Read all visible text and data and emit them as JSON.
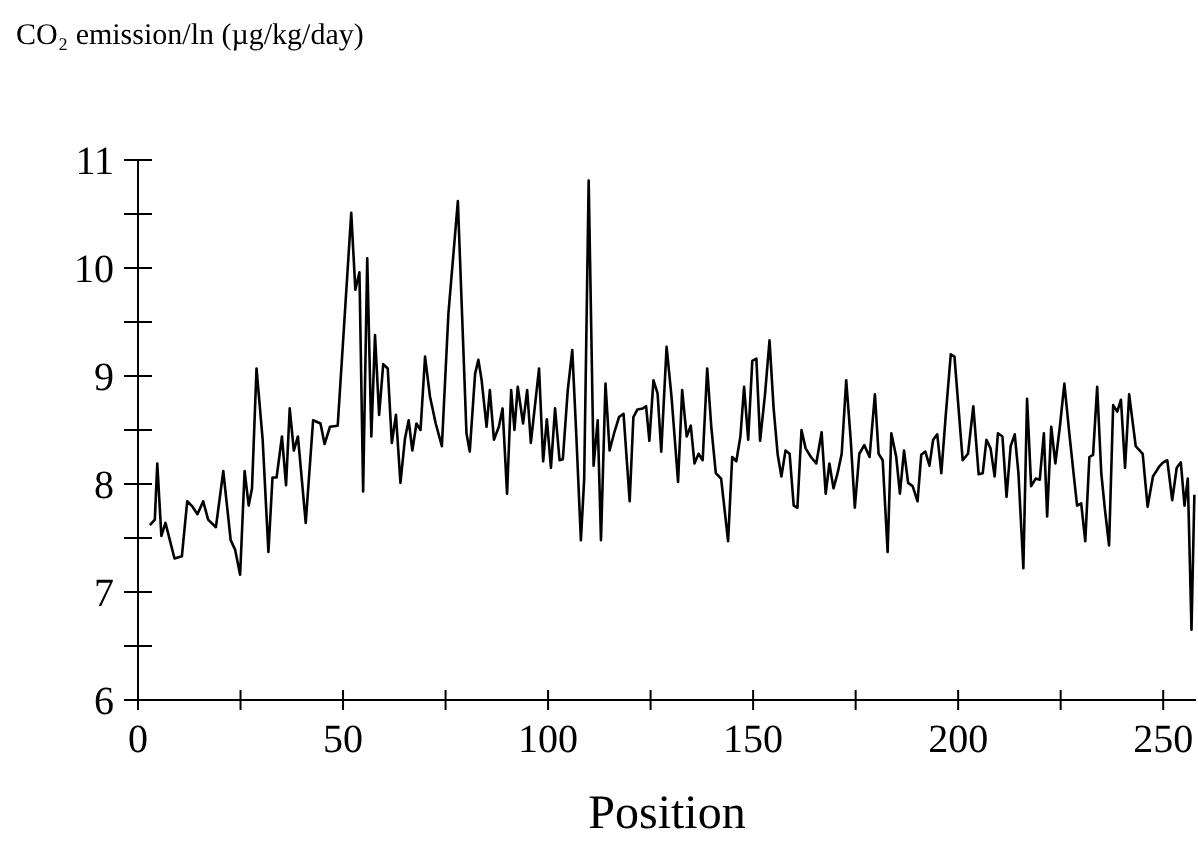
{
  "chart_data": {
    "type": "line",
    "title": "CO₂ emission/ln (µg/kg/day)",
    "xlabel": "Position",
    "xlim": [
      0,
      258
    ],
    "xticks": [
      0,
      {
        "value": 25,
        "label": null
      },
      50,
      {
        "value": 75,
        "label": null
      },
      100,
      {
        "value": 125,
        "label": null
      },
      150,
      {
        "value": 175,
        "label": null
      },
      200,
      {
        "value": 225,
        "label": null
      },
      250
    ],
    "ylim": [
      6,
      11
    ],
    "yticks": [
      6,
      {
        "value": 6.5,
        "label": null
      },
      7,
      {
        "value": 7.5,
        "label": null
      },
      8,
      {
        "value": 8.5,
        "label": null
      },
      9,
      {
        "value": 9.5,
        "label": null
      },
      10,
      {
        "value": 10.5,
        "label": null
      },
      11
    ],
    "series": [
      {
        "color": "#000000",
        "x": [
          2.9,
          4.1,
          4.7,
          5.7,
          6.7,
          8.9,
          10.7,
          12.0,
          13.3,
          14.5,
          15.9,
          17.1,
          19.0,
          20.8,
          22.6,
          23.7,
          24.9,
          26.0,
          27.0,
          27.8,
          28.9,
          30.4,
          31.8,
          32.8,
          33.8,
          35.1,
          36.1,
          37.0,
          38.0,
          39.0,
          40.9,
          42.7,
          44.5,
          45.5,
          46.8,
          48.7,
          52.0,
          53.0,
          54.0,
          54.9,
          55.9,
          56.9,
          57.8,
          58.8,
          59.8,
          60.9,
          61.9,
          62.9,
          64.0,
          65.1,
          66.0,
          66.9,
          67.9,
          68.9,
          70.0,
          71.2,
          72.6,
          74.1,
          75.7,
          78.0,
          80.1,
          80.9,
          82.2,
          83.0,
          83.8,
          85.0,
          85.8,
          86.8,
          88.0,
          88.9,
          90.0,
          91.0,
          91.8,
          92.6,
          93.9,
          94.9,
          95.8,
          96.7,
          97.8,
          98.8,
          99.7,
          100.7,
          101.7,
          102.8,
          103.6,
          104.8,
          105.9,
          106.9,
          108.0,
          108.8,
          109.9,
          111.1,
          112.1,
          112.9,
          114.0,
          115.0,
          116.1,
          117.3,
          118.4,
          119.9,
          120.8,
          121.8,
          123.1,
          123.9,
          124.7,
          125.7,
          126.7,
          127.6,
          128.9,
          130.1,
          131.7,
          132.7,
          133.8,
          134.8,
          135.7,
          136.7,
          137.7,
          138.8,
          139.8,
          140.9,
          142.2,
          143.9,
          144.9,
          145.9,
          146.9,
          147.8,
          148.8,
          149.8,
          150.8,
          151.7,
          152.9,
          154.0,
          155.0,
          156.0,
          156.9,
          157.9,
          158.9,
          159.9,
          160.8,
          161.8,
          162.8,
          164.1,
          165.4,
          166.7,
          167.7,
          168.6,
          169.6,
          170.6,
          171.6,
          172.7,
          173.8,
          174.8,
          175.9,
          177.1,
          178.4,
          179.7,
          180.6,
          181.6,
          182.8,
          183.7,
          184.9,
          185.8,
          186.8,
          187.8,
          188.9,
          190.1,
          191.0,
          192.0,
          193.0,
          193.9,
          194.9,
          195.9,
          197.0,
          198.2,
          199.1,
          201.1,
          202.4,
          203.7,
          205.0,
          206.0,
          206.9,
          207.9,
          208.9,
          209.7,
          210.8,
          211.8,
          212.8,
          213.8,
          214.7,
          215.9,
          216.8,
          217.8,
          218.9,
          219.9,
          220.9,
          221.7,
          222.7,
          223.7,
          224.8,
          225.9,
          227.1,
          228.0,
          229.0,
          230.0,
          231.0,
          232.0,
          232.9,
          233.9,
          234.9,
          235.8,
          236.8,
          237.8,
          238.8,
          239.7,
          240.7,
          241.7,
          243.3,
          245.0,
          246.2,
          247.5,
          249.0,
          250.0,
          251.0,
          252.2,
          253.3,
          254.3,
          255.2,
          256.0,
          256.9,
          257.6
        ],
        "values": [
          7.62,
          7.67,
          8.19,
          7.52,
          7.64,
          7.31,
          7.33,
          7.84,
          7.79,
          7.72,
          7.84,
          7.67,
          7.6,
          8.12,
          7.48,
          7.39,
          7.16,
          8.12,
          7.8,
          7.96,
          9.07,
          8.41,
          7.37,
          8.06,
          8.06,
          8.44,
          7.99,
          8.7,
          8.31,
          8.44,
          7.64,
          8.59,
          8.56,
          8.37,
          8.53,
          8.54,
          10.51,
          9.8,
          9.96,
          7.93,
          10.09,
          8.44,
          9.38,
          8.64,
          9.11,
          9.07,
          8.38,
          8.64,
          8.01,
          8.42,
          8.59,
          8.31,
          8.56,
          8.5,
          9.18,
          8.81,
          8.56,
          8.35,
          9.58,
          10.62,
          8.47,
          8.3,
          9.02,
          9.15,
          8.96,
          8.53,
          8.87,
          8.41,
          8.53,
          8.7,
          7.91,
          8.87,
          8.5,
          8.9,
          8.56,
          8.87,
          8.38,
          8.69,
          9.07,
          8.21,
          8.6,
          8.15,
          8.7,
          8.22,
          8.23,
          8.87,
          9.24,
          8.44,
          7.48,
          8.04,
          10.81,
          8.17,
          8.59,
          7.48,
          8.93,
          8.31,
          8.47,
          8.62,
          8.65,
          7.84,
          8.62,
          8.69,
          8.7,
          8.72,
          8.4,
          8.96,
          8.84,
          8.3,
          9.27,
          8.81,
          8.02,
          8.87,
          8.44,
          8.54,
          8.19,
          8.28,
          8.22,
          9.07,
          8.53,
          8.1,
          8.05,
          7.47,
          8.25,
          8.21,
          8.44,
          8.9,
          8.41,
          9.14,
          9.16,
          8.4,
          8.83,
          9.33,
          8.7,
          8.27,
          8.07,
          8.31,
          8.28,
          7.8,
          7.78,
          8.5,
          8.33,
          8.25,
          8.19,
          8.48,
          7.91,
          8.19,
          7.96,
          8.1,
          8.28,
          8.96,
          8.41,
          7.78,
          8.28,
          8.36,
          8.25,
          8.83,
          8.28,
          8.22,
          7.37,
          8.47,
          8.25,
          7.91,
          8.31,
          8.01,
          7.98,
          7.84,
          8.27,
          8.3,
          8.17,
          8.41,
          8.46,
          8.1,
          8.65,
          9.2,
          9.18,
          8.22,
          8.28,
          8.72,
          8.09,
          8.1,
          8.41,
          8.33,
          8.07,
          8.47,
          8.44,
          7.88,
          8.35,
          8.46,
          8.1,
          7.22,
          8.79,
          7.98,
          8.05,
          8.04,
          8.47,
          7.7,
          8.53,
          8.19,
          8.53,
          8.93,
          8.47,
          8.15,
          7.8,
          7.82,
          7.47,
          8.25,
          8.27,
          8.9,
          8.1,
          7.76,
          7.43,
          8.73,
          8.67,
          8.78,
          8.15,
          8.83,
          8.35,
          8.28,
          7.79,
          8.07,
          8.16,
          8.2,
          8.22,
          7.85,
          8.15,
          8.2,
          7.8,
          8.05,
          6.65,
          7.9
        ]
      }
    ]
  }
}
